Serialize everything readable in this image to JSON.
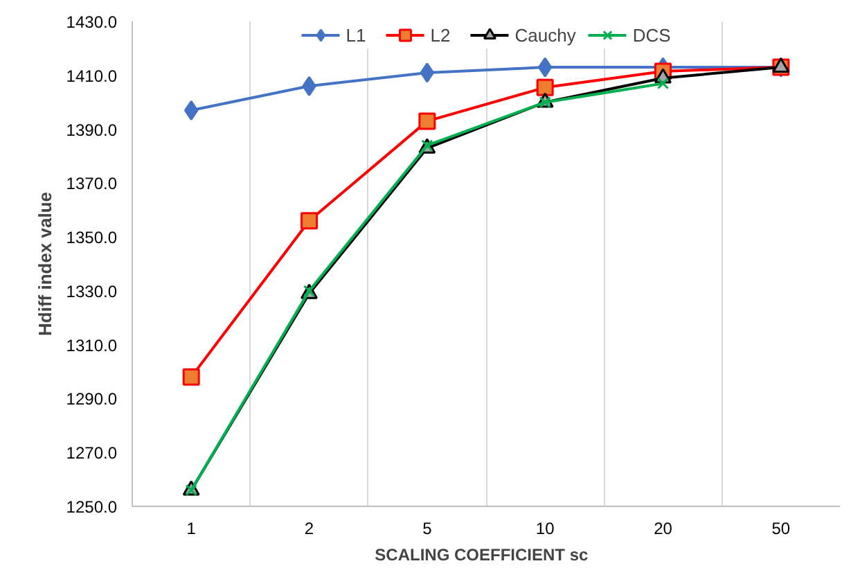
{
  "chart_data": {
    "type": "line",
    "xlabel": "SCALING  COEFFICIENT  sc",
    "ylabel": "Hdiff index value",
    "categories": [
      "1",
      "2",
      "5",
      "10",
      "20",
      "50"
    ],
    "series": [
      {
        "name": "L1",
        "color": "#4472c4",
        "marker": "diamond",
        "values": [
          1397,
          1406,
          1411,
          1413,
          1413,
          1413
        ]
      },
      {
        "name": "L2",
        "color": "#ff0000",
        "marker": "square",
        "values": [
          1298,
          1356,
          1393,
          1405.5,
          1411.5,
          1413
        ]
      },
      {
        "name": "Cauchy",
        "color": "#000000",
        "marker": "triangle",
        "values": [
          1256,
          1329,
          1383,
          1400,
          1409,
          1413
        ]
      },
      {
        "name": "DCS",
        "color": "#00b050",
        "marker": "cross",
        "values": [
          1256,
          1330,
          1384,
          1400,
          1407,
          null
        ]
      }
    ],
    "ylim": [
      1250,
      1430
    ],
    "yticks": [
      {
        "value": 1250,
        "label": "1250.0"
      },
      {
        "value": 1270,
        "label": "1270.0"
      },
      {
        "value": 1290,
        "label": "1290.0"
      },
      {
        "value": 1310,
        "label": "1310.0"
      },
      {
        "value": 1330,
        "label": "1330.0"
      },
      {
        "value": 1350,
        "label": "1350.0"
      },
      {
        "value": 1370,
        "label": "1370.0"
      },
      {
        "value": 1390,
        "label": "1390.0"
      },
      {
        "value": 1410,
        "label": "1410.0"
      },
      {
        "value": 1430,
        "label": "1430.0"
      }
    ],
    "grid": "x",
    "legend": "top",
    "line_style": "solid"
  }
}
